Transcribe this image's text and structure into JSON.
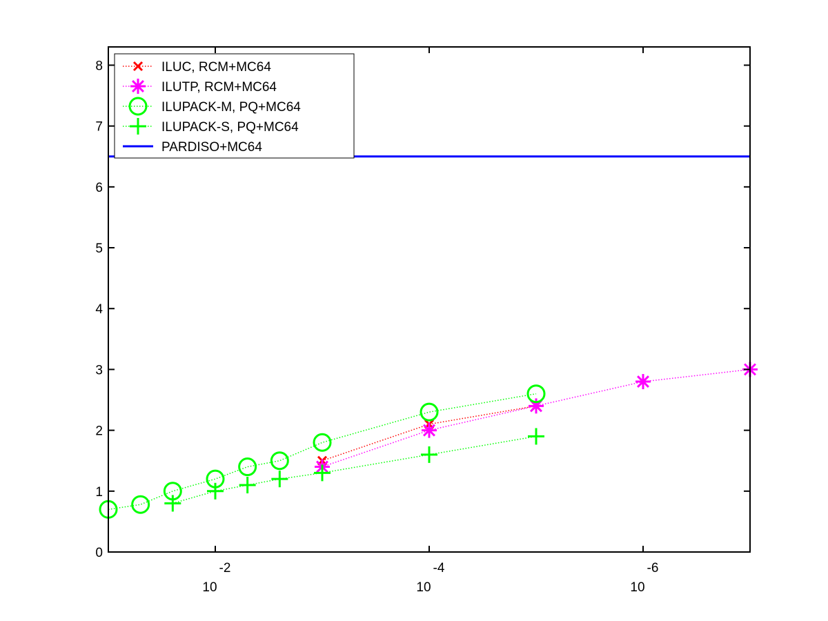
{
  "chart_data": {
    "type": "line",
    "title": "",
    "xlabel": "",
    "ylabel": "",
    "x_scale": "log-reversed",
    "xlim": [
      0.1,
      1e-07
    ],
    "ylim": [
      0,
      8.3
    ],
    "grid": false,
    "legend_position": "top-left",
    "y_ticks": [
      0,
      1,
      2,
      3,
      4,
      5,
      6,
      7,
      8
    ],
    "y_tick_labels": [
      "0",
      "1",
      "2",
      "3",
      "4",
      "5",
      "6",
      "7",
      "8"
    ],
    "x_ticks": [
      0.01,
      0.0001,
      1e-06
    ],
    "x_tick_labels": [
      {
        "base": "10",
        "exponent": "-2"
      },
      {
        "base": "10",
        "exponent": "-4"
      },
      {
        "base": "10",
        "exponent": "-6"
      }
    ],
    "series": [
      {
        "name": "ILUC, RCM+MC64",
        "color": "#ff0000",
        "marker": "x",
        "line_style": "dotted",
        "points": [
          [
            0.001,
            1.5
          ],
          [
            0.0001,
            2.1
          ],
          [
            1e-05,
            2.4
          ]
        ]
      },
      {
        "name": "ILUTP, RCM+MC64",
        "color": "#ff00ff",
        "marker": "asterisk",
        "line_style": "dotted",
        "points": [
          [
            0.001,
            1.4
          ],
          [
            0.0001,
            2.0
          ],
          [
            1e-05,
            2.4
          ],
          [
            1e-06,
            2.8
          ],
          [
            1e-07,
            3.0
          ]
        ]
      },
      {
        "name": "ILUPACK-M, PQ+MC64",
        "color": "#00ff00",
        "marker": "circle",
        "line_style": "dotted",
        "points": [
          [
            0.1,
            0.7
          ],
          [
            0.05,
            0.78
          ],
          [
            0.025,
            1.0
          ],
          [
            0.01,
            1.2
          ],
          [
            0.005,
            1.4
          ],
          [
            0.0025,
            1.5
          ],
          [
            0.001,
            1.8
          ],
          [
            0.0001,
            2.3
          ],
          [
            1e-05,
            2.6
          ]
        ]
      },
      {
        "name": "ILUPACK-S, PQ+MC64",
        "color": "#00ff00",
        "marker": "plus",
        "line_style": "dotted",
        "points": [
          [
            0.025,
            0.8
          ],
          [
            0.01,
            1.0
          ],
          [
            0.005,
            1.1
          ],
          [
            0.0025,
            1.2
          ],
          [
            0.001,
            1.3
          ],
          [
            0.0001,
            1.6
          ],
          [
            1e-05,
            1.9
          ]
        ]
      },
      {
        "name": "PARDISO+MC64",
        "color": "#0000ff",
        "marker": "none",
        "line_style": "solid",
        "points": [
          [
            0.1,
            6.5
          ],
          [
            1e-07,
            6.5
          ]
        ]
      }
    ]
  }
}
